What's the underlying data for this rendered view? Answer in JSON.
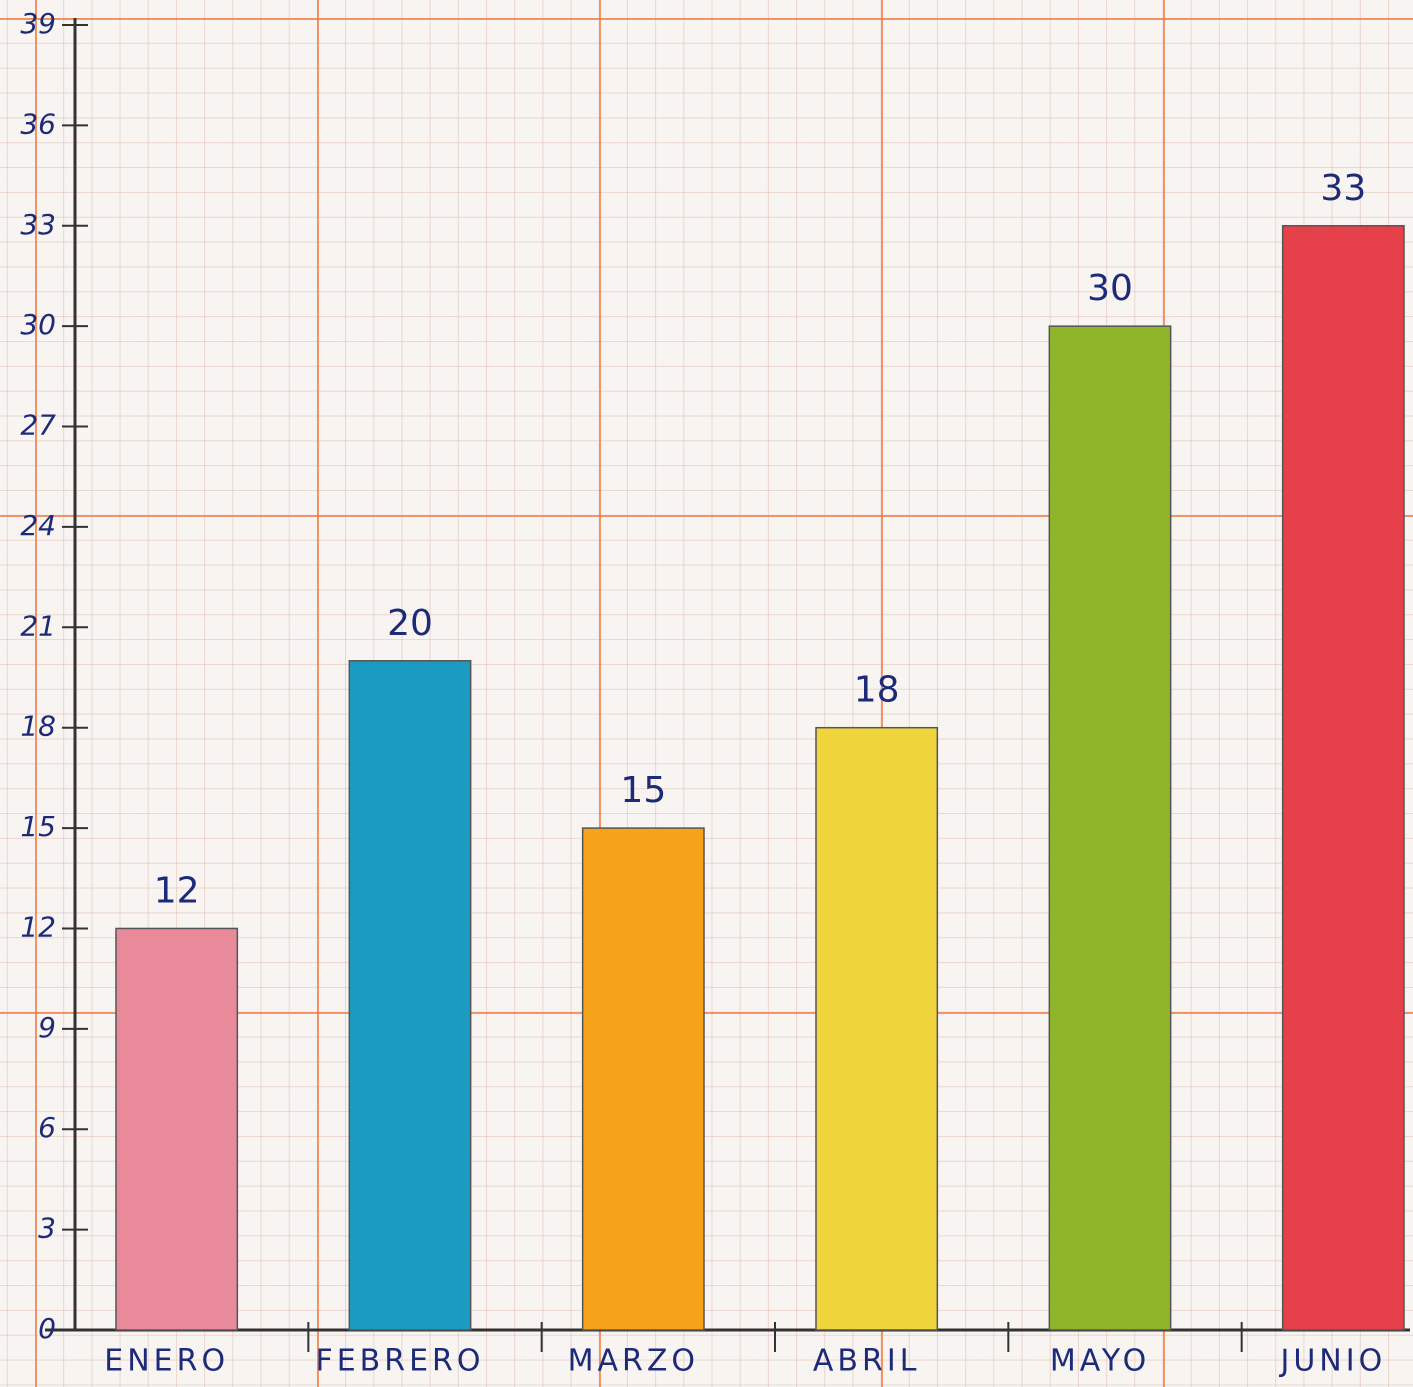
{
  "chart_data": {
    "type": "bar",
    "categories": [
      "ENERO",
      "FEBRERO",
      "MARZO",
      "ABRIL",
      "MAYO",
      "JUNIO"
    ],
    "values": [
      12,
      20,
      15,
      18,
      30,
      33
    ],
    "colors": [
      "#e98a9b",
      "#1b9bc1",
      "#f6a31c",
      "#efd43c",
      "#8fb62b",
      "#e6404a"
    ],
    "ylim": [
      0,
      39
    ],
    "yticks": [
      0,
      3,
      6,
      9,
      12,
      15,
      18,
      21,
      24,
      27,
      30,
      33,
      36,
      39
    ]
  }
}
